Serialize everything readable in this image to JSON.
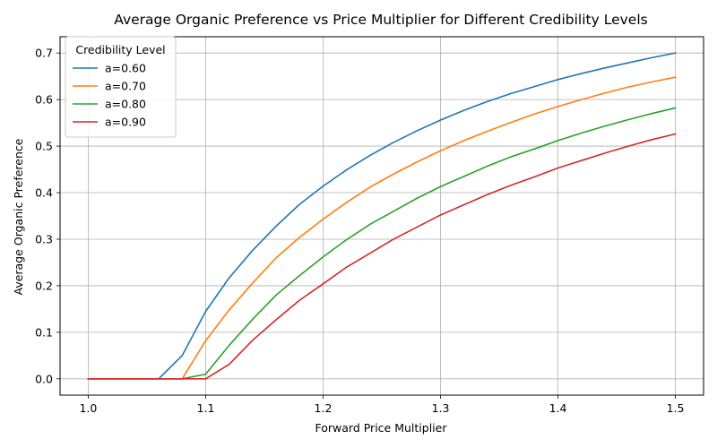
{
  "chart_data": {
    "type": "line",
    "title": "Average Organic Preference vs Price Multiplier for Different Credibility Levels",
    "xlabel": "Forward Price Multiplier",
    "ylabel": "Average Organic Preference",
    "xlim": [
      0.976,
      1.524
    ],
    "ylim": [
      -0.035,
      0.735
    ],
    "xticks": [
      1.0,
      1.1,
      1.2,
      1.3,
      1.4,
      1.5
    ],
    "xtick_labels": [
      "1.0",
      "1.1",
      "1.2",
      "1.3",
      "1.4",
      "1.5"
    ],
    "yticks": [
      0.0,
      0.1,
      0.2,
      0.3,
      0.4,
      0.5,
      0.6,
      0.7
    ],
    "ytick_labels": [
      "0.0",
      "0.1",
      "0.2",
      "0.3",
      "0.4",
      "0.5",
      "0.6",
      "0.7"
    ],
    "grid": true,
    "legend": {
      "title": "Credibility Level",
      "placement": "top-left"
    },
    "x": [
      1.0,
      1.02,
      1.04,
      1.06,
      1.08,
      1.1,
      1.12,
      1.14,
      1.16,
      1.18,
      1.2,
      1.22,
      1.24,
      1.26,
      1.28,
      1.3,
      1.32,
      1.34,
      1.36,
      1.38,
      1.4,
      1.42,
      1.44,
      1.46,
      1.48,
      1.5
    ],
    "series": [
      {
        "name": "a=0.60",
        "color": "#1f77b4",
        "values": [
          0,
          0,
          0,
          0,
          0.05,
          0.145,
          0.217,
          0.276,
          0.328,
          0.375,
          0.414,
          0.449,
          0.48,
          0.508,
          0.533,
          0.556,
          0.577,
          0.596,
          0.613,
          0.628,
          0.643,
          0.656,
          0.668,
          0.679,
          0.69,
          0.7
        ]
      },
      {
        "name": "a=0.70",
        "color": "#ff7f0e",
        "values": [
          0,
          0,
          0,
          0,
          0,
          0.082,
          0.148,
          0.206,
          0.26,
          0.304,
          0.343,
          0.379,
          0.412,
          0.44,
          0.466,
          0.49,
          0.512,
          0.532,
          0.551,
          0.569,
          0.585,
          0.6,
          0.614,
          0.627,
          0.638,
          0.648
        ]
      },
      {
        "name": "a=0.80",
        "color": "#2ca02c",
        "values": [
          0,
          0,
          0,
          0,
          0,
          0.01,
          0.072,
          0.128,
          0.18,
          0.222,
          0.262,
          0.299,
          0.332,
          0.36,
          0.388,
          0.413,
          0.435,
          0.457,
          0.477,
          0.494,
          0.512,
          0.528,
          0.543,
          0.557,
          0.57,
          0.582
        ]
      },
      {
        "name": "a=0.90",
        "color": "#d62728",
        "values": [
          0,
          0,
          0,
          0,
          0,
          0,
          0.031,
          0.083,
          0.127,
          0.169,
          0.204,
          0.24,
          0.27,
          0.3,
          0.326,
          0.352,
          0.374,
          0.396,
          0.416,
          0.434,
          0.453,
          0.469,
          0.485,
          0.5,
          0.514,
          0.526
        ]
      }
    ]
  }
}
